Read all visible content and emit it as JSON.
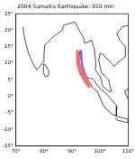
{
  "chart_data": {
    "type": "map",
    "title": "2004 Sumatra Earthquake: 010 min",
    "xlim": [
      70,
      110
    ],
    "xticks": [
      {
        "value": 70,
        "label": "70°"
      },
      {
        "value": 80,
        "label": "80°"
      },
      {
        "value": 90,
        "label": "90°"
      },
      {
        "value": 100,
        "label": "100°"
      },
      {
        "value": 110,
        "label": "110°"
      }
    ],
    "ylim": [
      -15,
      25
    ],
    "yticks": [
      {
        "value": -15,
        "label": "-15°"
      },
      {
        "value": -10,
        "label": "-10°"
      },
      {
        "value": -5,
        "label": "-5°"
      },
      {
        "value": 0,
        "label": "0°"
      },
      {
        "value": 5,
        "label": "5°"
      },
      {
        "value": 10,
        "label": "10°"
      },
      {
        "value": 15,
        "label": "15°"
      },
      {
        "value": 20,
        "label": "20°"
      },
      {
        "value": 25,
        "label": "25°"
      }
    ],
    "grid": false,
    "series": [
      {
        "type": "area",
        "color": "#f07070",
        "x": [
          91.5,
          92.3,
          93.0,
          94.2,
          95.8,
          96.7,
          96.0,
          94.5,
          92.5,
          91.5,
          91.5
        ],
        "values": [
          14.0,
          14.0,
          10.0,
          7.0,
          4.5,
          2.8,
          2.5,
          4.0,
          7.0,
          10.0,
          14.0
        ]
      },
      {
        "type": "area",
        "color": "#7070f0",
        "x": [
          92.8,
          93.5,
          93.8,
          94.8,
          95.5,
          95.0,
          94.0,
          93.2,
          92.8
        ],
        "values": [
          14.0,
          14.0,
          10.0,
          7.0,
          5.8,
          5.5,
          7.0,
          10.0,
          14.0
        ]
      },
      {
        "type": "line",
        "color": "#000000",
        "x": [
          72.5,
          72.8,
          73.5,
          74.5,
          76.0,
          77.5,
          78.5,
          79.8,
          80.0,
          80.3,
          82.0,
          84.0,
          86.5,
          87.0,
          89.0,
          91.0,
          92.0,
          92.5,
          94.0,
          94.5,
          97.0,
          98.0,
          98.5,
          98.3,
          100.0,
          101.0,
          103.5,
          104.0,
          103.0,
          102.0,
          100.5,
          100.0,
          99.5,
          100.0,
          101.0,
          103.0,
          105.0,
          106.0,
          109.0,
          109.0,
          107.0,
          106.0,
          108.0,
          110.0
        ],
        "values": [
          21.0,
          19.0,
          16.0,
          13.0,
          10.0,
          8.0,
          9.0,
          10.5,
          13.0,
          15.5,
          17.0,
          18.5,
          20.0,
          21.5,
          22.0,
          22.5,
          21.0,
          20.0,
          18.0,
          16.0,
          17.0,
          14.0,
          10.0,
          8.0,
          6.0,
          3.0,
          1.3,
          1.5,
          5.0,
          6.0,
          7.0,
          9.0,
          11.0,
          13.0,
          12.6,
          11.0,
          9.0,
          10.0,
          12.0,
          15.0,
          17.0,
          19.0,
          21.0,
          21.5
        ]
      },
      {
        "type": "line",
        "color": "#000000",
        "x": [
          79.8,
          80.5,
          81.8,
          81.5,
          80.5,
          79.9,
          79.8
        ],
        "values": [
          9.8,
          9.5,
          7.5,
          6.2,
          5.9,
          6.8,
          9.8
        ]
      },
      {
        "type": "line",
        "color": "#000000",
        "x": [
          95.3,
          97.5,
          98.7,
          100.5,
          102.0,
          104.0,
          106.0,
          105.8,
          104.5,
          102.3,
          101.0,
          100.3,
          99.0,
          97.5,
          96.0,
          95.3
        ],
        "values": [
          5.6,
          5.2,
          3.7,
          2.0,
          1.0,
          -1.0,
          -3.0,
          -5.8,
          -5.6,
          -4.0,
          -2.5,
          -1.0,
          1.5,
          2.5,
          4.5,
          5.6
        ]
      },
      {
        "type": "line",
        "color": "#000000",
        "x": [
          105.5,
          108.0,
          110.0,
          110.0,
          106.0,
          105.5
        ],
        "values": [
          -6.0,
          -6.5,
          -7.0,
          -8.0,
          -7.2,
          -6.5
        ]
      },
      {
        "type": "line",
        "color": "#000000",
        "x": [
          110.0,
          109.5,
          108.8,
          109.5,
          110.0
        ],
        "values": [
          2.5,
          1.8,
          1.5,
          0.0,
          -1.0
        ]
      },
      {
        "type": "line",
        "color": "#000000",
        "x": [
          92.7,
          93.0,
          92.7,
          92.5,
          92.7
        ],
        "values": [
          13.5,
          12.0,
          11.0,
          12.0,
          13.5
        ]
      }
    ]
  }
}
